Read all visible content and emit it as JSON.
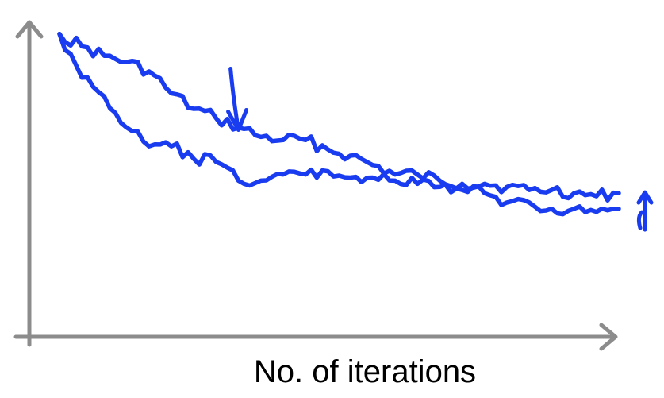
{
  "colors": {
    "axis": "#8c8c8c",
    "curve": "#1a3cf0",
    "background": "#ffffff"
  },
  "chart_data": {
    "type": "line",
    "title": "",
    "xlabel": "No. of iterations",
    "ylabel": "",
    "grid": false,
    "legend": "none",
    "xlim": [
      0,
      100
    ],
    "ylim": [
      0,
      100
    ],
    "series": [
      {
        "x": [
          0,
          4,
          8,
          12,
          16,
          20,
          24,
          28,
          32,
          36,
          40,
          44,
          48,
          52,
          56,
          60,
          64,
          68,
          72,
          76,
          80,
          84,
          88,
          92,
          96,
          100
        ],
        "y": [
          96,
          92,
          89,
          87,
          84,
          77,
          72,
          69,
          66,
          63,
          62,
          62,
          59,
          57,
          54,
          51,
          51,
          49,
          48,
          48,
          47,
          46,
          46,
          45,
          44,
          45
        ]
      },
      {
        "x": [
          0,
          4,
          8,
          12,
          16,
          20,
          24,
          28,
          32,
          36,
          40,
          44,
          48,
          52,
          56,
          60,
          64,
          68,
          72,
          76,
          80,
          84,
          88,
          92,
          96,
          100
        ],
        "y": [
          96,
          82,
          76,
          66,
          60,
          60,
          56,
          55,
          49,
          49,
          51,
          51,
          52,
          50,
          50,
          49,
          48,
          47,
          46,
          45,
          42,
          42,
          40,
          40,
          39,
          40
        ]
      }
    ],
    "annotations": [
      {
        "type": "arrow-down",
        "x": 32,
        "y": 64
      },
      {
        "type": "arrow-up",
        "x": 100,
        "y": 44
      }
    ]
  }
}
